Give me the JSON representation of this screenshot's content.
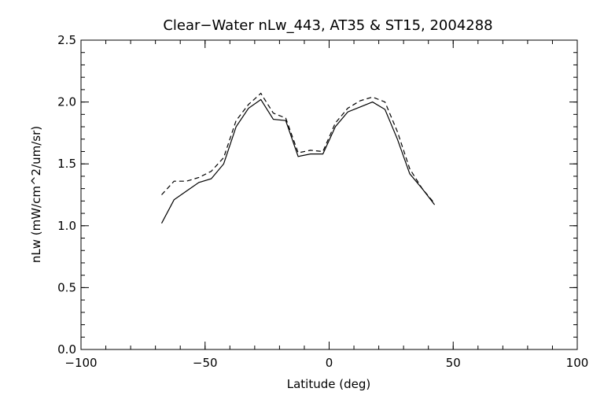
{
  "chart_data": {
    "type": "line",
    "title": "Clear−Water nLw_443, AT35 & ST15, 2004288",
    "xlabel": "Latitude (deg)",
    "ylabel": "nLw (mW/cm^2/um/sr)",
    "xlim": [
      -100,
      100
    ],
    "ylim": [
      0.0,
      2.5
    ],
    "x_ticks": [
      -100,
      -50,
      0,
      50,
      100
    ],
    "x_tick_labels": [
      "−100",
      "−50",
      "0",
      "50",
      "100"
    ],
    "y_ticks": [
      0.0,
      0.5,
      1.0,
      1.5,
      2.0,
      2.5
    ],
    "y_tick_labels": [
      "0.0",
      "0.5",
      "1.0",
      "1.5",
      "2.0",
      "2.5"
    ],
    "grid": false,
    "legend": "none",
    "series": [
      {
        "style": "solid",
        "color": "#000000",
        "x": [
          -67.5,
          -62.5,
          -57.5,
          -52.5,
          -47.5,
          -42.5,
          -37.5,
          -32.5,
          -27.5,
          -22.5,
          -17.5,
          -12.5,
          -7.5,
          -2.5,
          2.5,
          7.5,
          12.5,
          17.5,
          22.5,
          27.5,
          32.5,
          37.5,
          42.5
        ],
        "y": [
          1.02,
          1.21,
          1.28,
          1.35,
          1.38,
          1.5,
          1.8,
          1.95,
          2.02,
          1.86,
          1.85,
          1.56,
          1.58,
          1.58,
          1.8,
          1.92,
          1.96,
          2.0,
          1.94,
          1.7,
          1.42,
          1.3,
          1.17
        ]
      },
      {
        "style": "dashed",
        "color": "#000000",
        "x": [
          -67.5,
          -62.5,
          -57.5,
          -52.5,
          -47.5,
          -42.5,
          -37.5,
          -32.5,
          -27.5,
          -22.5,
          -17.5,
          -12.5,
          -7.5,
          -2.5,
          2.5,
          7.5,
          12.5,
          17.5,
          22.5,
          27.5,
          32.5,
          37.5,
          42.5
        ],
        "y": [
          1.25,
          1.36,
          1.36,
          1.39,
          1.44,
          1.55,
          1.85,
          1.98,
          2.07,
          1.91,
          1.87,
          1.59,
          1.61,
          1.6,
          1.83,
          1.95,
          2.01,
          2.04,
          2.0,
          1.76,
          1.46,
          1.3,
          1.18
        ]
      }
    ]
  }
}
